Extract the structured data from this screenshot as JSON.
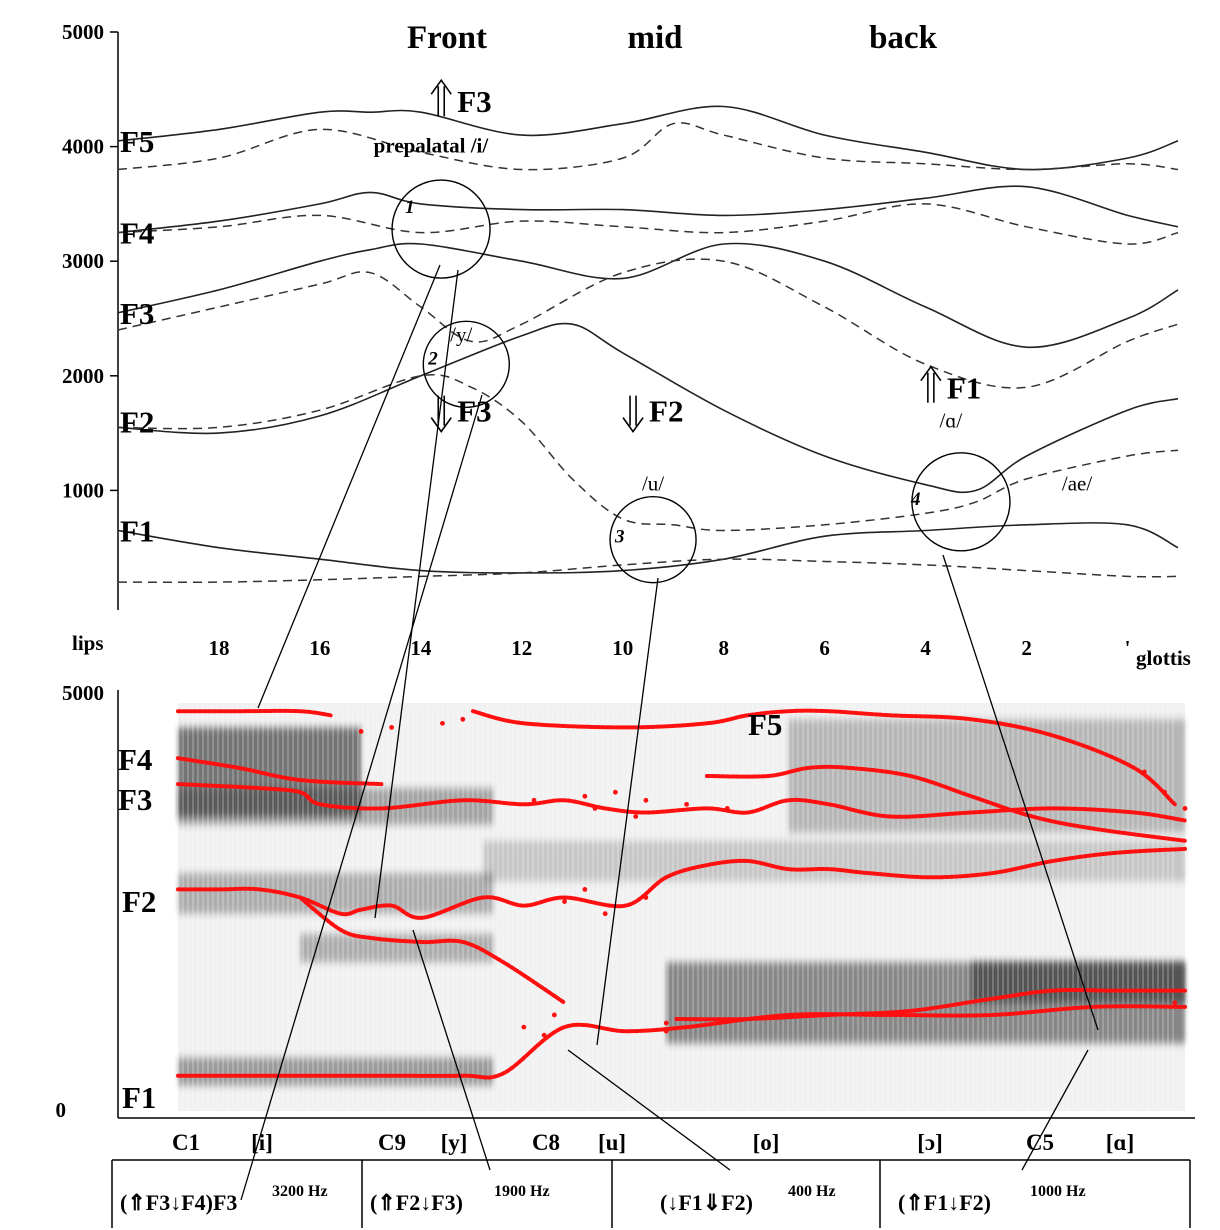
{
  "chart_data": [
    {
      "type": "line",
      "region_labels": [
        "Front",
        "mid",
        "back"
      ],
      "y_ticks": [
        "5000",
        "4000",
        "3000",
        "2000",
        "1000"
      ],
      "x_ticks": [
        "18",
        "16",
        "14",
        "12",
        "10",
        "8",
        "6",
        "4",
        "2",
        "'"
      ],
      "x_end_labels": {
        "left": "lips",
        "right": "glottis"
      },
      "formant_labels": [
        "F5",
        "F4",
        "F3",
        "F2",
        "F1"
      ],
      "x_range": [
        20,
        -1
      ],
      "y_range": [
        0,
        5000
      ],
      "series": [
        {
          "style": "solid",
          "x": [
            20,
            18,
            16,
            15,
            14,
            12,
            10,
            8,
            6,
            4,
            2,
            0,
            -1
          ],
          "y": [
            4050,
            4150,
            4300,
            4300,
            4300,
            4100,
            4200,
            4350,
            4100,
            3950,
            3800,
            3900,
            4050
          ]
        },
        {
          "style": "dashed",
          "x": [
            20,
            18,
            16,
            14,
            12,
            10,
            9,
            8,
            6,
            4,
            2,
            0,
            -1
          ],
          "y": [
            3800,
            3900,
            4150,
            3950,
            3800,
            3900,
            4200,
            4100,
            3900,
            3850,
            3800,
            3850,
            3800
          ]
        },
        {
          "style": "solid",
          "x": [
            20,
            18,
            16,
            15,
            14,
            12,
            10,
            8,
            6,
            4,
            2,
            0,
            -1
          ],
          "y": [
            3250,
            3350,
            3500,
            3600,
            3500,
            3450,
            3450,
            3400,
            3450,
            3550,
            3650,
            3400,
            3300
          ]
        },
        {
          "style": "dashed",
          "x": [
            20,
            18,
            16,
            14,
            12,
            10,
            8,
            6,
            4,
            2,
            0,
            -1
          ],
          "y": [
            3250,
            3300,
            3400,
            3250,
            3350,
            3300,
            3250,
            3350,
            3500,
            3300,
            3150,
            3250
          ]
        },
        {
          "style": "solid",
          "x": [
            20,
            18,
            16,
            15,
            14,
            12,
            10,
            8,
            6,
            4,
            2,
            0,
            -1
          ],
          "y": [
            2550,
            2750,
            3000,
            3100,
            3150,
            3000,
            2850,
            3150,
            3000,
            2600,
            2250,
            2500,
            2750
          ]
        },
        {
          "style": "dashed",
          "x": [
            20,
            18,
            16,
            15,
            14,
            13,
            12,
            10,
            8,
            6,
            4,
            2,
            0,
            -1
          ],
          "y": [
            2400,
            2600,
            2800,
            2900,
            2600,
            2300,
            2450,
            2900,
            3000,
            2600,
            2100,
            1900,
            2300,
            2450
          ]
        },
        {
          "style": "solid",
          "x": [
            20,
            18,
            16,
            14,
            12,
            11,
            10,
            8,
            6,
            4,
            3,
            2,
            0,
            -1
          ],
          "y": [
            1550,
            1500,
            1650,
            2000,
            2350,
            2450,
            2200,
            1700,
            1300,
            1050,
            1000,
            1300,
            1700,
            1800
          ]
        },
        {
          "style": "dashed",
          "x": [
            20,
            18,
            16,
            14,
            13,
            12,
            11,
            10,
            9,
            8,
            6,
            4,
            3,
            2,
            0,
            -1
          ],
          "y": [
            1550,
            1550,
            1700,
            2000,
            1900,
            1600,
            1100,
            750,
            700,
            650,
            700,
            800,
            900,
            1100,
            1300,
            1350
          ]
        },
        {
          "style": "solid",
          "x": [
            20,
            18,
            16,
            14,
            12,
            10,
            8,
            6,
            4,
            2,
            0,
            -1
          ],
          "y": [
            650,
            500,
            400,
            300,
            280,
            300,
            400,
            600,
            650,
            700,
            700,
            500
          ]
        },
        {
          "style": "dashed",
          "x": [
            20,
            18,
            16,
            14,
            12,
            10,
            8,
            6,
            4,
            2,
            0,
            -1
          ],
          "y": [
            200,
            200,
            220,
            250,
            280,
            350,
            400,
            380,
            350,
            300,
            250,
            250
          ]
        }
      ],
      "annotations": [
        {
          "text": "F3",
          "arrow": "up-double",
          "x": 13.2,
          "y": 4300
        },
        {
          "text": "prepalatal /i/",
          "x": 13.8,
          "y": 3950
        },
        {
          "text": "/y/",
          "x": 13.2,
          "y": 2300
        },
        {
          "text": "F3",
          "arrow": "down-double",
          "x": 13.2,
          "y": 1600
        },
        {
          "text": "F2",
          "arrow": "down-double",
          "x": 9.4,
          "y": 1600
        },
        {
          "text": "/u/",
          "x": 9.4,
          "y": 1000
        },
        {
          "text": "F1",
          "arrow": "up-double",
          "x": 3.5,
          "y": 1800
        },
        {
          "text": "/ɑ/",
          "x": 3.5,
          "y": 1550
        },
        {
          "text": "/ae/",
          "x": 1.0,
          "y": 1000
        }
      ],
      "circles": [
        {
          "label": "1",
          "x": 13.6,
          "y": 3280
        },
        {
          "label": "2",
          "x": 13.1,
          "y": 2100
        },
        {
          "label": "3",
          "x": 9.4,
          "y": 570
        },
        {
          "label": "4",
          "x": 3.3,
          "y": 900
        }
      ]
    },
    {
      "type": "spectrogram",
      "y_ticks": [
        "5000",
        "0"
      ],
      "y_range": [
        0,
        5000
      ],
      "formant_labels": [
        "F5",
        "F4",
        "F3",
        "F2",
        "F1"
      ],
      "segment_labels": [
        "C1",
        "[i]",
        "C9",
        "[y]",
        "C8",
        "[u]",
        "[o]",
        "[ɔ]",
        "C5",
        "[ɑ]"
      ],
      "formant_tracks": [
        {
          "name": "F5",
          "x": [
            0.0,
            0.3,
            0.6,
            0.75
          ],
          "y": [
            4800,
            4800,
            4800,
            4750
          ]
        },
        {
          "name": "F5",
          "x": [
            1.45,
            1.7,
            2.2,
            2.6,
            2.8,
            3.0,
            3.2,
            3.5,
            3.9,
            4.3,
            4.7,
            4.9
          ],
          "y": [
            4800,
            4650,
            4600,
            4650,
            4750,
            4800,
            4800,
            4750,
            4700,
            4500,
            4100,
            3650
          ]
        },
        {
          "name": "F4",
          "x": [
            0.0,
            0.3,
            0.6,
            1.0
          ],
          "y": [
            4220,
            4100,
            3950,
            3900
          ]
        },
        {
          "name": "F3",
          "x": [
            0.0,
            0.4,
            0.6,
            0.7,
            1.0,
            1.4,
            1.7,
            1.9,
            2.1,
            2.3,
            2.6,
            2.8,
            3.0,
            3.2,
            3.5,
            3.9,
            4.3,
            4.7,
            4.95
          ],
          "y": [
            3900,
            3850,
            3800,
            3650,
            3600,
            3700,
            3650,
            3700,
            3600,
            3550,
            3600,
            3550,
            3700,
            3650,
            3500,
            3550,
            3600,
            3550,
            3450
          ]
        },
        {
          "name": "F3",
          "x": [
            2.6,
            2.9,
            3.1,
            3.3,
            3.6,
            3.9,
            4.2,
            4.5,
            4.95
          ],
          "y": [
            4000,
            4000,
            4100,
            4100,
            4000,
            3750,
            3500,
            3350,
            3200
          ]
        },
        {
          "name": "F2",
          "x": [
            0.0,
            0.2,
            0.4,
            0.6,
            0.8,
            0.9,
            1.05,
            1.2,
            1.5,
            1.7,
            1.9,
            2.2,
            2.4,
            2.6,
            2.8,
            3.0,
            3.2,
            3.4,
            3.7,
            4.0,
            4.3,
            4.6,
            4.95
          ],
          "y": [
            2600,
            2600,
            2600,
            2500,
            2300,
            2350,
            2400,
            2250,
            2500,
            2400,
            2500,
            2400,
            2750,
            2900,
            2950,
            2850,
            2850,
            2800,
            2750,
            2800,
            2950,
            3050,
            3100
          ]
        },
        {
          "name": "F2",
          "x": [
            0.6,
            0.8,
            0.95,
            1.2,
            1.4,
            1.6,
            1.9
          ],
          "y": [
            2500,
            2100,
            2000,
            1950,
            1950,
            1700,
            1200
          ]
        },
        {
          "name": "F1",
          "x": [
            0.0,
            0.5,
            1.0,
            1.4,
            1.6,
            1.9,
            2.2,
            2.5,
            3.0,
            3.5,
            4.0,
            4.5,
            4.95
          ],
          "y": [
            300,
            300,
            300,
            300,
            330,
            900,
            850,
            900,
            1050,
            1050,
            1050,
            1150,
            1150
          ]
        },
        {
          "name": "F1",
          "x": [
            2.45,
            2.8,
            3.2,
            3.6,
            4.0,
            4.3,
            4.6,
            4.95
          ],
          "y": [
            1000,
            1000,
            1050,
            1100,
            1250,
            1350,
            1350,
            1350
          ]
        }
      ]
    }
  ],
  "bottom_boxes": [
    {
      "text": "(⇑F3↓F4)F3",
      "sup": "3200 Hz"
    },
    {
      "text": "(⇑F2↓F3)",
      "sup": "1900 Hz"
    },
    {
      "text": "(↓F1⇓F2)",
      "sup": "400 Hz"
    },
    {
      "text": "(⇑F1↓F2)",
      "sup": "1000 Hz"
    }
  ]
}
